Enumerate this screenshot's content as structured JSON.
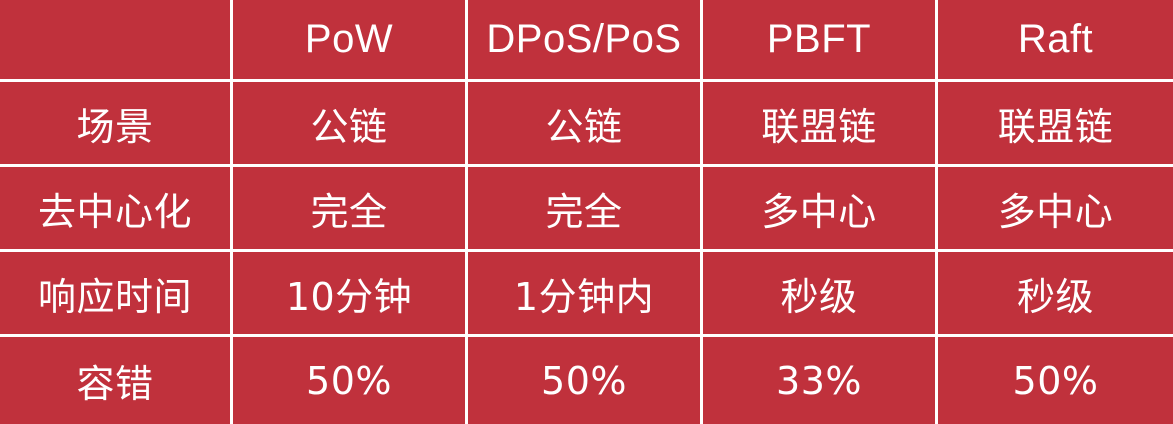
{
  "table": {
    "columns": [
      "",
      "PoW",
      "DPoS/PoS",
      "PBFT",
      "Raft"
    ],
    "rows": [
      [
        "场景",
        "公链",
        "公链",
        "联盟链",
        "联盟链"
      ],
      [
        "去中心化",
        "完全",
        "完全",
        "多中心",
        "多中心"
      ],
      [
        "响应时间",
        "10分钟",
        "1分钟内",
        "秒级",
        "秒级"
      ],
      [
        "容错",
        "50%",
        "50%",
        "33%",
        "50%"
      ]
    ]
  },
  "colors": {
    "cell_background": "#c0313c",
    "text": "#ffffff",
    "grid_lines": "#ffffff"
  }
}
